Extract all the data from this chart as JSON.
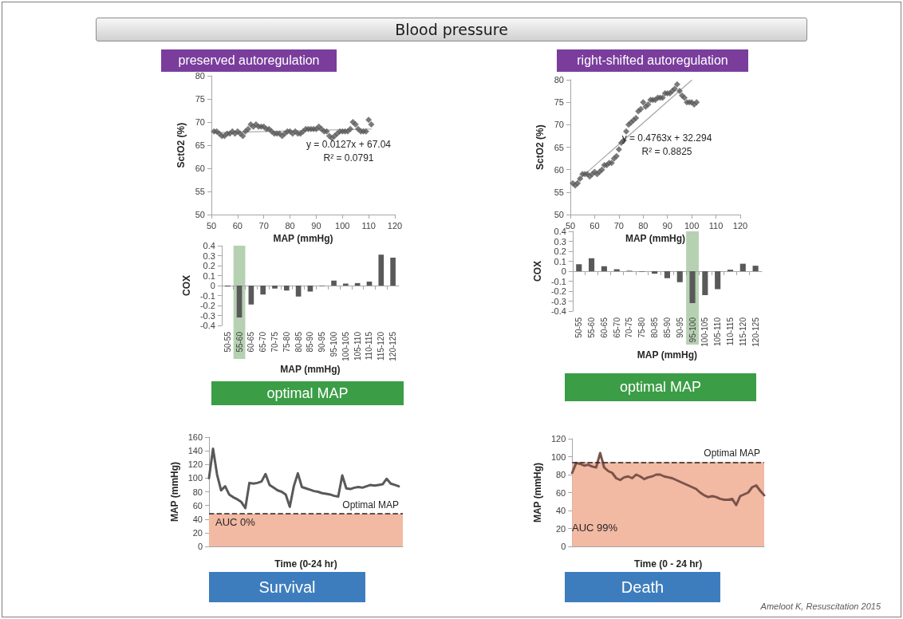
{
  "chart_data": [
    {
      "type": "other",
      "title": "Blood pressure",
      "annotations": [
        "Ameloot K, Resuscitation 2015"
      ]
    },
    {
      "type": "scatter",
      "title": "preserved autoregulation",
      "xlabel": "MAP (mmHg)",
      "ylabel": "SctO2 (%)",
      "marker": "diamond",
      "xlim": [
        50,
        120
      ],
      "xticks": [
        50,
        60,
        70,
        80,
        90,
        100,
        110,
        120
      ],
      "ylim": [
        50,
        80
      ],
      "yticks": [
        50,
        55,
        60,
        65,
        70,
        75,
        80
      ],
      "annotations": [
        "y = 0.0127x + 67.04",
        "R² = 0.0791"
      ],
      "series": [
        {
          "color": "#595959",
          "x": [
            51,
            52,
            53,
            54,
            55,
            56,
            57,
            58,
            59,
            60,
            61,
            62,
            63,
            64,
            65,
            66,
            67,
            68,
            69,
            70,
            71,
            72,
            73,
            74,
            75,
            76,
            77,
            78,
            79,
            80,
            81,
            82,
            83,
            84,
            85,
            86,
            87,
            88,
            89,
            90,
            91,
            92,
            93,
            94,
            95,
            96,
            97,
            98,
            99,
            100,
            101,
            102,
            103,
            104,
            105,
            106,
            107,
            108,
            109,
            110,
            111
          ],
          "values": [
            68,
            68,
            67.5,
            67,
            67,
            67.5,
            67.5,
            68,
            67.5,
            68,
            67.5,
            67,
            68,
            68.5,
            69.5,
            69,
            69.5,
            69,
            69,
            69,
            68.5,
            68.5,
            68,
            67.5,
            67.5,
            67.5,
            67,
            67.5,
            68,
            68,
            67.5,
            68,
            67.5,
            67.5,
            68,
            68.5,
            68.5,
            68.5,
            68.5,
            68.5,
            69,
            68.5,
            68,
            68,
            67,
            66.5,
            67,
            67.5,
            68,
            68,
            68,
            68,
            68.5,
            70,
            69.5,
            68.5,
            68,
            68,
            68,
            70.5,
            69.5
          ]
        },
        {
          "type": "line",
          "marker": "none",
          "color": "#a6a6a6",
          "x": [
            51,
            111
          ],
          "values": [
            67.7,
            68.5
          ]
        }
      ]
    },
    {
      "type": "scatter",
      "title": "right-shifted autoregulation",
      "xlabel": "MAP (mmHg)",
      "ylabel": "SctO2 (%)",
      "marker": "diamond",
      "xlim": [
        50,
        120
      ],
      "xticks": [
        50,
        60,
        70,
        80,
        90,
        100,
        110,
        120
      ],
      "ylim": [
        50,
        80
      ],
      "yticks": [
        50,
        55,
        60,
        65,
        70,
        75,
        80
      ],
      "annotations": [
        "y = 0.4763x + 32.294",
        "R² = 0.8825"
      ],
      "series": [
        {
          "color": "#595959",
          "x": [
            51,
            52,
            53,
            54,
            55,
            56,
            57,
            58,
            59,
            60,
            61,
            62,
            63,
            64,
            65,
            66,
            67,
            68,
            69,
            70,
            71,
            72,
            73,
            74,
            75,
            76,
            77,
            78,
            79,
            80,
            81,
            82,
            83,
            84,
            85,
            86,
            87,
            88,
            89,
            90,
            91,
            92,
            93,
            94,
            95,
            96,
            97,
            98,
            99,
            100,
            101,
            102
          ],
          "values": [
            57,
            56.5,
            57,
            58,
            59,
            59,
            59,
            58.5,
            59,
            59.5,
            59,
            59.5,
            60,
            61,
            61,
            61.5,
            61.5,
            62.5,
            63,
            64.5,
            66,
            66.5,
            68.5,
            70,
            70.5,
            71,
            71.5,
            73,
            73.5,
            75,
            74,
            74.5,
            75.5,
            75.5,
            75.5,
            76,
            76,
            76,
            77,
            77,
            77,
            77.5,
            78,
            79,
            77.5,
            76.5,
            76,
            75,
            75,
            75,
            74.5,
            75
          ]
        },
        {
          "type": "line",
          "marker": "none",
          "color": "#a6a6a6",
          "x": [
            52,
            100
          ],
          "values": [
            57.1,
            79.9
          ]
        }
      ]
    },
    {
      "type": "bar",
      "ylabel": "COX",
      "xlabel": "MAP (mmHg)",
      "color": "#595959",
      "categories": [
        "50-55",
        "55-60",
        "60-65",
        "65-70",
        "70-75",
        "75-80",
        "80-85",
        "85-90",
        "90-95",
        "95-100",
        "100-105",
        "105-110",
        "110-115",
        "115-120",
        "120-125"
      ],
      "values": [
        -0.01,
        -0.32,
        -0.19,
        -0.09,
        -0.03,
        -0.05,
        -0.11,
        -0.06,
        -0.005,
        0.05,
        0.02,
        0.025,
        0.04,
        0.31,
        0.28
      ],
      "ylim": [
        -0.4,
        0.4
      ],
      "yticks": [
        -0.4,
        -0.3,
        -0.2,
        -0.1,
        0,
        0.1,
        0.2,
        0.3,
        0.4
      ],
      "bands": [
        {
          "axis": "x",
          "from": "55-60",
          "to": "55-60",
          "color": "#a9c9a4"
        }
      ],
      "annotations": [
        "optimal MAP"
      ]
    },
    {
      "type": "bar",
      "ylabel": "COX",
      "xlabel": "MAP (mmHg)",
      "color": "#595959",
      "categories": [
        "50-55",
        "55-60",
        "60-65",
        "65-70",
        "70-75",
        "75-80",
        "80-85",
        "85-90",
        "90-95",
        "95-100",
        "100-105",
        "105-110",
        "110-115",
        "115-120",
        "120-125"
      ],
      "values": [
        0.07,
        0.13,
        0.05,
        0.02,
        0.005,
        -0.005,
        -0.025,
        -0.07,
        -0.11,
        -0.32,
        -0.24,
        -0.18,
        0.015,
        0.075,
        0.055
      ],
      "ylim": [
        -0.4,
        0.4
      ],
      "yticks": [
        -0.4,
        -0.3,
        -0.2,
        -0.1,
        0,
        0.1,
        0.2,
        0.3,
        0.4
      ],
      "bands": [
        {
          "axis": "x",
          "from": "95-100",
          "to": "95-100",
          "color": "#a9c9a4"
        }
      ],
      "annotations": [
        "optimal MAP"
      ]
    },
    {
      "type": "line",
      "marker": "none",
      "ylabel": "MAP (mmHg)",
      "xlabel": "Time (0-24 hr)",
      "color": "#595959",
      "ylim": [
        0,
        160
      ],
      "yticks": [
        0,
        20,
        40,
        60,
        80,
        100,
        120,
        140,
        160
      ],
      "categories": [
        null,
        null,
        null,
        null,
        null,
        null,
        null,
        null,
        null,
        null,
        null,
        null,
        null,
        null,
        null,
        null,
        null,
        null,
        null,
        null,
        null,
        null,
        null,
        null,
        null,
        null,
        null,
        null,
        null,
        null,
        null,
        null,
        null,
        null,
        null,
        null,
        null,
        null,
        null,
        null,
        null,
        null,
        null,
        null,
        null,
        null,
        null,
        null,
        null
      ],
      "values": [
        100,
        143,
        105,
        82,
        88,
        76,
        72,
        69,
        65,
        56,
        93,
        92,
        93,
        95,
        106,
        90,
        86,
        82,
        80,
        76,
        58,
        88,
        107,
        87,
        85,
        83,
        81,
        80,
        78,
        77,
        76,
        74,
        73,
        104,
        85,
        84,
        86,
        87,
        86,
        88,
        90,
        89,
        90,
        91,
        99,
        92,
        90,
        88,
        null
      ],
      "ref_lines": [
        {
          "axis": "y",
          "value": 48,
          "label": "Optimal MAP",
          "line_style": "dashed",
          "color": "#262626"
        }
      ],
      "bands": [
        {
          "axis": "y",
          "from": 0,
          "to": 48,
          "color": "#f2b9a3"
        }
      ],
      "annotations": [
        "AUC 0%",
        "Survival"
      ]
    },
    {
      "type": "line",
      "marker": "none",
      "ylabel": "MAP (mmHg)",
      "xlabel": "Time (0 - 24 hr)",
      "color": "#7b534b",
      "ylim": [
        0,
        120
      ],
      "yticks": [
        0,
        20,
        40,
        60,
        80,
        100,
        120
      ],
      "categories": [
        null,
        null,
        null,
        null,
        null,
        null,
        null,
        null,
        null,
        null,
        null,
        null,
        null,
        null,
        null,
        null,
        null,
        null,
        null,
        null,
        null,
        null,
        null,
        null,
        null,
        null,
        null,
        null,
        null,
        null,
        null,
        null,
        null,
        null,
        null,
        null,
        null,
        null,
        null,
        null,
        null,
        null,
        null,
        null,
        null,
        null,
        null,
        null,
        null
      ],
      "values": [
        82,
        93,
        92,
        90,
        91,
        89,
        88,
        104,
        88,
        84,
        82,
        76,
        74,
        77,
        78,
        76,
        80,
        78,
        75,
        77,
        78,
        80,
        80,
        78,
        77,
        76,
        74,
        72,
        70,
        68,
        66,
        64,
        60,
        57,
        55,
        56,
        55,
        53,
        52,
        52,
        53,
        46,
        56,
        58,
        60,
        66,
        68,
        62,
        57
      ],
      "ref_lines": [
        {
          "axis": "y",
          "value": 94,
          "label": "Optimal MAP",
          "line_style": "dashed",
          "color": "#262626"
        }
      ],
      "bands": [
        {
          "axis": "y",
          "from": 0,
          "to": 94,
          "color": "#f2b9a3"
        }
      ],
      "annotations": [
        "AUC 99%",
        "Death"
      ]
    }
  ]
}
